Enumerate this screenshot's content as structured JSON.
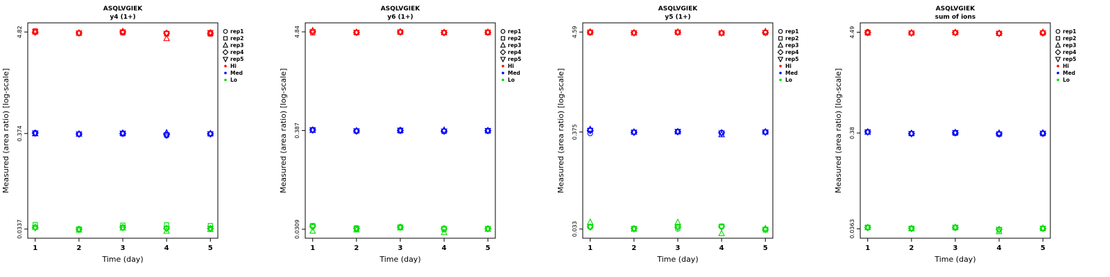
{
  "axes": {
    "xlabel": "Time (day)",
    "ylabel": "Measured (area ratio) [log-scale]",
    "x_ticks": [
      1,
      2,
      3,
      4,
      5
    ]
  },
  "legend": {
    "entries": [
      {
        "label": "rep1",
        "shape": "circle",
        "color": "#000000"
      },
      {
        "label": "rep2",
        "shape": "square",
        "color": "#000000"
      },
      {
        "label": "rep3",
        "shape": "triangle-up",
        "color": "#000000"
      },
      {
        "label": "rep4",
        "shape": "diamond",
        "color": "#000000"
      },
      {
        "label": "rep5",
        "shape": "triangle-down",
        "color": "#000000"
      },
      {
        "label": "Hi",
        "marker": "dot",
        "color": "#FF0000"
      },
      {
        "label": "Med",
        "marker": "dot",
        "color": "#0000FF"
      },
      {
        "label": "Lo",
        "marker": "dot",
        "color": "#00DD00"
      }
    ]
  },
  "chart_data": [
    {
      "type": "scatter",
      "title": "ASQLVGIEK",
      "subtitle": "y4 (1+)",
      "xlabel": "Time (day)",
      "ylabel": "Measured (area ratio) [log-scale]",
      "x": [
        1,
        2,
        3,
        4,
        5
      ],
      "yscale": "log",
      "ytick_labels": [
        "4.82",
        "0.374",
        "0.0337"
      ],
      "series": [
        {
          "name": "Hi",
          "color": "#FF0000",
          "reps": [
            {
              "label": "rep1",
              "shape": "circle",
              "values": [
                4.78,
                4.68,
                4.78,
                4.62,
                4.78
              ]
            },
            {
              "label": "rep2",
              "shape": "square",
              "values": [
                4.95,
                4.66,
                4.72,
                4.6,
                4.58
              ]
            },
            {
              "label": "rep3",
              "shape": "triangle-up",
              "values": [
                4.85,
                4.72,
                4.9,
                4.1,
                4.7
              ]
            },
            {
              "label": "rep4",
              "shape": "diamond",
              "values": [
                4.8,
                4.7,
                4.84,
                4.68,
                4.66
              ]
            },
            {
              "label": "rep5",
              "shape": "triangle-down",
              "values": [
                4.82,
                4.69,
                4.8,
                4.64,
                4.72
              ]
            }
          ]
        },
        {
          "name": "Med",
          "color": "#0000FF",
          "reps": [
            {
              "label": "rep1",
              "shape": "circle",
              "values": [
                0.381,
                0.37,
                0.377,
                0.355,
                0.372
              ]
            },
            {
              "label": "rep2",
              "shape": "square",
              "values": [
                0.376,
                0.367,
                0.371,
                0.362,
                0.369
              ]
            },
            {
              "label": "rep3",
              "shape": "triangle-up",
              "values": [
                0.374,
                0.371,
                0.379,
                0.382,
                0.375
              ]
            },
            {
              "label": "rep4",
              "shape": "diamond",
              "values": [
                0.379,
                0.369,
                0.374,
                0.368,
                0.371
              ]
            },
            {
              "label": "rep5",
              "shape": "triangle-down",
              "values": [
                0.377,
                0.368,
                0.376,
                0.358,
                0.37
              ]
            }
          ]
        },
        {
          "name": "Lo",
          "color": "#00DD00",
          "reps": [
            {
              "label": "rep1",
              "shape": "circle",
              "values": [
                0.0352,
                0.0335,
                0.035,
                0.0345,
                0.0344
              ]
            },
            {
              "label": "rep2",
              "shape": "square",
              "values": [
                0.0378,
                0.0338,
                0.0372,
                0.0375,
                0.0368
              ]
            },
            {
              "label": "rep3",
              "shape": "triangle-up",
              "values": [
                0.0355,
                0.033,
                0.0348,
                0.032,
                0.0335
              ]
            },
            {
              "label": "rep4",
              "shape": "diamond",
              "values": [
                0.035,
                0.0336,
                0.0352,
                0.0342,
                0.0341
              ]
            },
            {
              "label": "rep5",
              "shape": "triangle-down",
              "values": [
                0.0348,
                0.0333,
                0.0349,
                0.034,
                0.0343
              ]
            }
          ]
        }
      ]
    },
    {
      "type": "scatter",
      "title": "ASQLVGIEK",
      "subtitle": "y6 (1+)",
      "xlabel": "Time (day)",
      "ylabel": "Measured (area ratio) [log-scale]",
      "x": [
        1,
        2,
        3,
        4,
        5
      ],
      "yscale": "log",
      "ytick_labels": [
        "4.84",
        "0.387",
        "0.0309"
      ],
      "series": [
        {
          "name": "Hi",
          "color": "#FF0000",
          "reps": [
            {
              "label": "rep1",
              "shape": "circle",
              "values": [
                4.86,
                4.78,
                4.82,
                4.76,
                4.8
              ]
            },
            {
              "label": "rep2",
              "shape": "square",
              "values": [
                4.72,
                4.74,
                4.78,
                4.72,
                4.74
              ]
            },
            {
              "label": "rep3",
              "shape": "triangle-up",
              "values": [
                5.0,
                4.8,
                4.86,
                4.78,
                4.82
              ]
            },
            {
              "label": "rep4",
              "shape": "diamond",
              "values": [
                4.88,
                4.77,
                4.83,
                4.75,
                4.79
              ]
            },
            {
              "label": "rep5",
              "shape": "triangle-down",
              "values": [
                4.84,
                4.76,
                4.81,
                4.74,
                4.78
              ]
            }
          ]
        },
        {
          "name": "Med",
          "color": "#0000FF",
          "reps": [
            {
              "label": "rep1",
              "shape": "circle",
              "values": [
                0.392,
                0.378,
                0.392,
                0.38,
                0.384
              ]
            },
            {
              "label": "rep2",
              "shape": "square",
              "values": [
                0.395,
                0.384,
                0.383,
                0.378,
                0.382
              ]
            },
            {
              "label": "rep3",
              "shape": "triangle-up",
              "values": [
                0.39,
                0.386,
                0.389,
                0.392,
                0.387
              ]
            },
            {
              "label": "rep4",
              "shape": "diamond",
              "values": [
                0.393,
                0.383,
                0.387,
                0.382,
                0.385
              ]
            },
            {
              "label": "rep5",
              "shape": "triangle-down",
              "values": [
                0.391,
                0.381,
                0.388,
                0.38,
                0.386
              ]
            }
          ]
        },
        {
          "name": "Lo",
          "color": "#00DD00",
          "reps": [
            {
              "label": "rep1",
              "shape": "circle",
              "values": [
                0.033,
                0.031,
                0.033,
                0.0318,
                0.0315
              ]
            },
            {
              "label": "rep2",
              "shape": "square",
              "values": [
                0.034,
                0.032,
                0.0325,
                0.0308,
                0.0312
              ]
            },
            {
              "label": "rep3",
              "shape": "triangle-up",
              "values": [
                0.0295,
                0.0305,
                0.0322,
                0.0285,
                0.031
              ]
            },
            {
              "label": "rep4",
              "shape": "diamond",
              "values": [
                0.0332,
                0.0315,
                0.0326,
                0.0312,
                0.0314
              ]
            },
            {
              "label": "rep5",
              "shape": "triangle-down",
              "values": [
                0.0328,
                0.0312,
                0.0324,
                0.031,
                0.0313
              ]
            }
          ]
        }
      ]
    },
    {
      "type": "scatter",
      "title": "ASQLVGIEK",
      "subtitle": "y5 (1+)",
      "xlabel": "Time (day)",
      "ylabel": "Measured (area ratio) [log-scale]",
      "x": [
        1,
        2,
        3,
        4,
        5
      ],
      "yscale": "log",
      "ytick_labels": [
        "4.59",
        "0.375",
        "0.033"
      ],
      "series": [
        {
          "name": "Hi",
          "color": "#FF0000",
          "reps": [
            {
              "label": "rep1",
              "shape": "circle",
              "values": [
                4.6,
                4.5,
                4.58,
                4.48,
                4.56
              ]
            },
            {
              "label": "rep2",
              "shape": "square",
              "values": [
                4.52,
                4.48,
                4.54,
                4.46,
                4.5
              ]
            },
            {
              "label": "rep3",
              "shape": "triangle-up",
              "values": [
                4.62,
                4.52,
                4.6,
                4.5,
                4.66
              ]
            },
            {
              "label": "rep4",
              "shape": "diamond",
              "values": [
                4.58,
                4.51,
                4.57,
                4.49,
                4.54
              ]
            },
            {
              "label": "rep5",
              "shape": "triangle-down",
              "values": [
                4.56,
                4.49,
                4.56,
                4.47,
                4.52
              ]
            }
          ]
        },
        {
          "name": "Med",
          "color": "#0000FF",
          "reps": [
            {
              "label": "rep1",
              "shape": "circle",
              "values": [
                0.362,
                0.372,
                0.378,
                0.37,
                0.376
              ]
            },
            {
              "label": "rep2",
              "shape": "square",
              "values": [
                0.392,
                0.374,
                0.376,
                0.366,
                0.374
              ]
            },
            {
              "label": "rep3",
              "shape": "triangle-up",
              "values": [
                0.402,
                0.376,
                0.38,
                0.352,
                0.378
              ]
            },
            {
              "label": "rep4",
              "shape": "diamond",
              "values": [
                0.39,
                0.373,
                0.377,
                0.368,
                0.375
              ]
            },
            {
              "label": "rep5",
              "shape": "triangle-down",
              "values": [
                0.388,
                0.371,
                0.379,
                0.364,
                0.373
              ]
            }
          ]
        },
        {
          "name": "Lo",
          "color": "#00DD00",
          "reps": [
            {
              "label": "rep1",
              "shape": "circle",
              "values": [
                0.0345,
                0.0332,
                0.033,
                0.0348,
                0.033
              ]
            },
            {
              "label": "rep2",
              "shape": "square",
              "values": [
                0.035,
                0.0335,
                0.0352,
                0.0355,
                0.0322
              ]
            },
            {
              "label": "rep3",
              "shape": "triangle-up",
              "values": [
                0.0392,
                0.033,
                0.039,
                0.0295,
                0.0335
              ]
            },
            {
              "label": "rep4",
              "shape": "diamond",
              "values": [
                0.0348,
                0.0334,
                0.0346,
                0.035,
                0.0328
              ]
            },
            {
              "label": "rep5",
              "shape": "triangle-down",
              "values": [
                0.0346,
                0.0331,
                0.0344,
                0.0345,
                0.0326
              ]
            }
          ]
        }
      ]
    },
    {
      "type": "scatter",
      "title": "ASQLVGIEK",
      "subtitle": "sum of ions",
      "xlabel": "Time (day)",
      "ylabel": "Measured (area ratio) [log-scale]",
      "x": [
        1,
        2,
        3,
        4,
        5
      ],
      "yscale": "log",
      "ytick_labels": [
        "4.49",
        "0.38",
        "0.0363"
      ],
      "series": [
        {
          "name": "Hi",
          "color": "#FF0000",
          "reps": [
            {
              "label": "rep1",
              "shape": "circle",
              "values": [
                4.55,
                4.42,
                4.46,
                4.38,
                4.44
              ]
            },
            {
              "label": "rep2",
              "shape": "square",
              "values": [
                4.4,
                4.4,
                4.44,
                4.36,
                4.4
              ]
            },
            {
              "label": "rep3",
              "shape": "triangle-up",
              "values": [
                4.48,
                4.44,
                4.48,
                4.4,
                4.5
              ]
            },
            {
              "label": "rep4",
              "shape": "diamond",
              "values": [
                4.46,
                4.41,
                4.45,
                4.37,
                4.42
              ]
            },
            {
              "label": "rep5",
              "shape": "triangle-down",
              "values": [
                4.44,
                4.39,
                4.43,
                4.35,
                4.41
              ]
            }
          ]
        },
        {
          "name": "Med",
          "color": "#0000FF",
          "reps": [
            {
              "label": "rep1",
              "shape": "circle",
              "values": [
                0.392,
                0.376,
                0.384,
                0.372,
                0.378
              ]
            },
            {
              "label": "rep2",
              "shape": "square",
              "values": [
                0.388,
                0.374,
                0.378,
                0.368,
                0.374
              ]
            },
            {
              "label": "rep3",
              "shape": "triangle-up",
              "values": [
                0.39,
                0.378,
                0.386,
                0.38,
                0.382
              ]
            },
            {
              "label": "rep4",
              "shape": "diamond",
              "values": [
                0.391,
                0.375,
                0.381,
                0.374,
                0.377
              ]
            },
            {
              "label": "rep5",
              "shape": "triangle-down",
              "values": [
                0.389,
                0.373,
                0.383,
                0.37,
                0.376
              ]
            }
          ]
        },
        {
          "name": "Lo",
          "color": "#00DD00",
          "reps": [
            {
              "label": "rep1",
              "shape": "circle",
              "values": [
                0.0372,
                0.0366,
                0.0375,
                0.0355,
                0.0368
              ]
            },
            {
              "label": "rep2",
              "shape": "square",
              "values": [
                0.0378,
                0.0368,
                0.0372,
                0.0352,
                0.0364
              ]
            },
            {
              "label": "rep3",
              "shape": "triangle-up",
              "values": [
                0.0375,
                0.0364,
                0.0378,
                0.034,
                0.037
              ]
            },
            {
              "label": "rep4",
              "shape": "diamond",
              "values": [
                0.0374,
                0.0367,
                0.0374,
                0.0358,
                0.0366
              ]
            },
            {
              "label": "rep5",
              "shape": "triangle-down",
              "values": [
                0.0373,
                0.0365,
                0.0376,
                0.0356,
                0.0367
              ]
            }
          ]
        }
      ]
    }
  ]
}
